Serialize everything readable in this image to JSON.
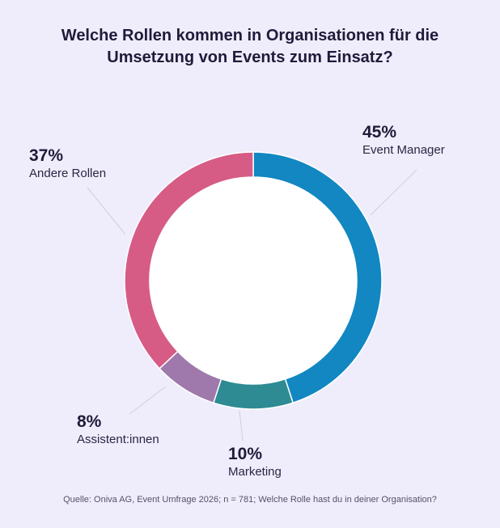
{
  "chart_data": {
    "type": "pie",
    "title_lines": [
      "Welche Rollen kommen in Organisationen für die",
      "Umsetzung von Events zum Einsatz?"
    ],
    "slices": [
      {
        "label": "Event Manager",
        "value": 45,
        "value_label": "45%",
        "color": "#1287c2"
      },
      {
        "label": "Marketing",
        "value": 10,
        "value_label": "10%",
        "color": "#2e8a93"
      },
      {
        "label": "Assistent:innen",
        "value": 8,
        "value_label": "8%",
        "color": "#9f79ac"
      },
      {
        "label": "Andere Rollen",
        "value": 37,
        "value_label": "37%",
        "color": "#d65c86"
      }
    ],
    "style": "donut"
  },
  "source": "Quelle: Oniva AG, Event Umfrage 2026; n = 781; Welche Rolle hast du in deiner Organisation?"
}
